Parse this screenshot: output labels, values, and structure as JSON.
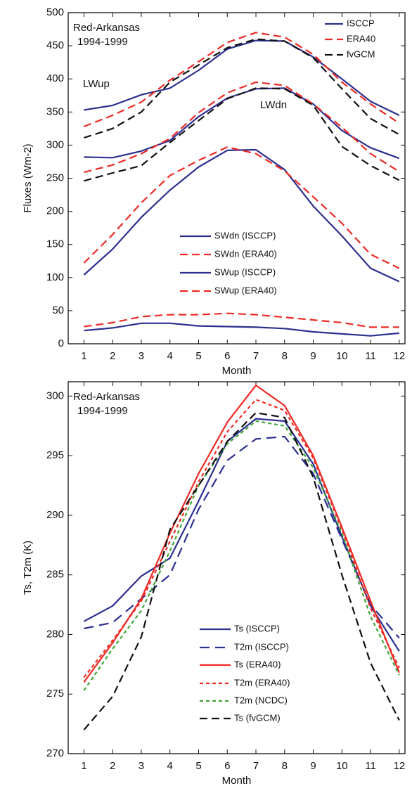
{
  "chart_data": [
    {
      "type": "line",
      "ylabel": "Fluxes (Wm-2)",
      "xlabel": "Month",
      "annotations": [
        "Red-Arkansas",
        "1994-1999",
        "LWup",
        "LWdn"
      ],
      "x": [
        1,
        2,
        3,
        4,
        5,
        6,
        7,
        8,
        9,
        10,
        11,
        12
      ],
      "xlim": [
        0.45,
        12.2
      ],
      "xticks": [
        1,
        2,
        3,
        4,
        5,
        6,
        7,
        8,
        9,
        10,
        11,
        12
      ],
      "ylim": [
        0,
        500
      ],
      "yticks": [
        0,
        50,
        100,
        150,
        200,
        250,
        300,
        350,
        400,
        450,
        500
      ],
      "series": [
        {
          "name": "ISCCP",
          "color": "#2b2f8f",
          "linestyle": "solid",
          "values": [
            353,
            360,
            376,
            386,
            413,
            445,
            458,
            457,
            433,
            400,
            366,
            345
          ]
        },
        {
          "name": "ERA40",
          "color": "#ee2a24",
          "linestyle": "dashed",
          "values": [
            328,
            345,
            365,
            398,
            426,
            455,
            470,
            463,
            437,
            395,
            362,
            333
          ]
        },
        {
          "name": "fvGCM",
          "color": "#111111",
          "linestyle": "dashed",
          "values": [
            311,
            325,
            350,
            395,
            421,
            447,
            460,
            457,
            432,
            385,
            340,
            316
          ]
        },
        {
          "color": "#2b2f8f",
          "linestyle": "solid",
          "values": [
            282,
            281,
            291,
            307,
            343,
            371,
            385,
            386,
            362,
            322,
            296,
            280
          ]
        },
        {
          "color": "#ee2a24",
          "linestyle": "dashed",
          "values": [
            259,
            270,
            287,
            310,
            349,
            379,
            395,
            390,
            362,
            327,
            287,
            260
          ]
        },
        {
          "color": "#111111",
          "linestyle": "dashed",
          "values": [
            246,
            258,
            269,
            304,
            337,
            370,
            386,
            385,
            360,
            298,
            269,
            247
          ]
        },
        {
          "name": "SWdn (ISCCP)",
          "color": "#2b2f8f",
          "linestyle": "solid",
          "values": [
            104,
            143,
            191,
            232,
            267,
            292,
            293,
            263,
            208,
            163,
            114,
            94
          ]
        },
        {
          "name": "SWdn (ERA40)",
          "color": "#ee2a24",
          "linestyle": "dashed",
          "values": [
            122,
            165,
            213,
            254,
            277,
            297,
            287,
            261,
            222,
            182,
            135,
            114
          ]
        },
        {
          "name": "SWup (ISCCP)",
          "color": "#2b2f8f",
          "linestyle": "solid",
          "values": [
            20,
            24,
            31,
            31,
            27,
            26,
            25,
            23,
            18,
            15,
            12,
            16
          ]
        },
        {
          "name": "SWup (ERA40)",
          "color": "#ee2a24",
          "linestyle": "dashed",
          "values": [
            26,
            32,
            41,
            44,
            44,
            46,
            44,
            40,
            36,
            32,
            25,
            25
          ]
        }
      ]
    },
    {
      "type": "line",
      "ylabel": "Ts, T2m (K)",
      "xlabel": "Month",
      "annotations": [
        "Red-Arkansas",
        "1994-1999"
      ],
      "x": [
        1,
        2,
        3,
        4,
        5,
        6,
        7,
        8,
        9,
        10,
        11,
        12
      ],
      "xlim": [
        0.45,
        12.2
      ],
      "xticks": [
        1,
        2,
        3,
        4,
        5,
        6,
        7,
        8,
        9,
        10,
        11,
        12
      ],
      "ylim": [
        270,
        301.2
      ],
      "yticks": [
        270,
        275,
        280,
        285,
        290,
        295,
        300
      ],
      "series": [
        {
          "name": "Ts (ISCCP)",
          "color": "#2b2f8f",
          "linestyle": "solid",
          "values": [
            281.1,
            282.4,
            284.9,
            286.4,
            291.2,
            296.2,
            298.1,
            297.9,
            294.3,
            288.2,
            282.4,
            278.6
          ]
        },
        {
          "name": "T2m (ISCCP)",
          "color": "#2b2f8f",
          "linestyle": "long-dashed",
          "values": [
            280.5,
            281.0,
            283.0,
            285.0,
            290.5,
            294.6,
            296.4,
            296.6,
            293.5,
            288.0,
            282.5,
            279.7
          ]
        },
        {
          "name": "Ts (ERA40)",
          "color": "#ee2a24",
          "linestyle": "solid",
          "values": [
            276.0,
            279.3,
            283.0,
            288.5,
            293.5,
            297.8,
            300.9,
            299.2,
            295.0,
            289.0,
            282.8,
            276.8
          ]
        },
        {
          "name": "T2m (ERA40)",
          "color": "#ee2a24",
          "linestyle": "short-dashed",
          "values": [
            276.4,
            279.5,
            282.8,
            287.8,
            292.8,
            297.0,
            299.7,
            298.8,
            294.8,
            288.8,
            282.2,
            277.2
          ]
        },
        {
          "name": "T2m (NCDC)",
          "color": "#3fa535",
          "linestyle": "short-dashed",
          "values": [
            275.3,
            278.8,
            282.0,
            287.0,
            292.5,
            296.0,
            297.9,
            297.5,
            294.0,
            288.5,
            281.5,
            276.6
          ]
        },
        {
          "name": "Ts (fvGCM)",
          "color": "#111111",
          "linestyle": "dashed",
          "values": [
            272.0,
            274.8,
            279.8,
            288.8,
            292.5,
            296.2,
            298.6,
            298.2,
            293.2,
            285.0,
            277.6,
            272.8
          ]
        }
      ]
    }
  ]
}
